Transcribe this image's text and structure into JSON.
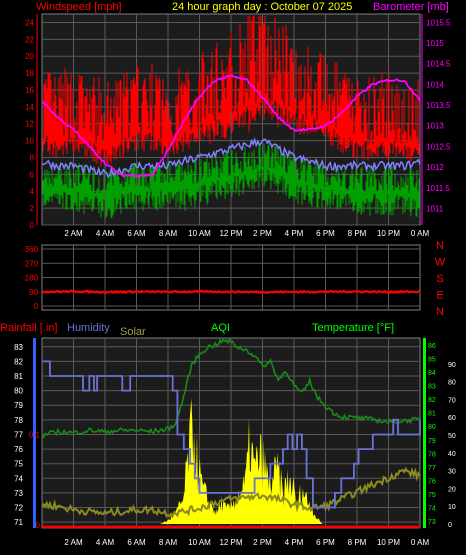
{
  "header": {
    "left_label": "Windspeed [mph]",
    "title": "24 hour graph day : October 07 2025",
    "right_label": "Barometer [mb]"
  },
  "colors": {
    "background": "#000000",
    "plot_bg": "#1c1c1c",
    "grid": "#5a5a5a",
    "wind_gust": "#ff0000",
    "wind_avg": "#00a000",
    "wind_line": "#8080ff",
    "barometer": "#ff00ff",
    "direction": "#ff0000",
    "rain": "#3060ff",
    "humidity": "#6b73d6",
    "solar": "#ffff00",
    "solar_line": "#8a8a20",
    "temperature": "#1a8a1a",
    "temp_axis": "#00ff00",
    "aqi_label": "#00ff00"
  },
  "x_ticks": [
    "2 AM",
    "4 AM",
    "6 AM",
    "8 AM",
    "10 AM",
    "12 PM",
    "2 PM",
    "4 PM",
    "6 PM",
    "8 PM",
    "10 PM",
    "0 AM"
  ],
  "chart_data": [
    {
      "type": "line",
      "name_label": "wind-and-barometer",
      "x_unit": "hour",
      "wind_axis": {
        "ylim": [
          0,
          25
        ],
        "ticks": [
          0,
          2,
          4,
          6,
          8,
          10,
          12,
          14,
          16,
          18,
          20,
          22,
          24
        ]
      },
      "baro_axis": {
        "ylim": [
          1010.6,
          1015.7
        ],
        "ticks": [
          "1011",
          "1011.5",
          "1012",
          "1012.5",
          "1013",
          "1013.5",
          "1014",
          "1014.5",
          "1015",
          "1015.5"
        ]
      },
      "series": [
        {
          "key": "gust",
          "x": [
            0,
            1,
            2,
            3,
            4,
            5,
            6,
            7,
            8,
            9,
            10,
            11,
            12,
            13,
            14,
            15,
            16,
            17,
            18,
            19,
            20,
            21,
            22,
            23,
            24
          ],
          "y": [
            13,
            12,
            13,
            12,
            11,
            12,
            13,
            13,
            12,
            13,
            14,
            15,
            16,
            17,
            19,
            17,
            16,
            15,
            14,
            13,
            12,
            12,
            12,
            12,
            11
          ]
        },
        {
          "key": "gust_spread",
          "x": [
            0,
            1,
            2,
            3,
            4,
            5,
            6,
            7,
            8,
            9,
            10,
            11,
            12,
            13,
            14,
            15,
            16,
            17,
            18,
            19,
            20,
            21,
            22,
            23,
            24
          ],
          "y": [
            4,
            4,
            4,
            4,
            4,
            4,
            4,
            4,
            4,
            4,
            4,
            5,
            5,
            6,
            6,
            5,
            5,
            4,
            4,
            4,
            4,
            4,
            4,
            4,
            4
          ]
        },
        {
          "key": "average",
          "x": [
            0,
            1,
            2,
            3,
            4,
            5,
            6,
            7,
            8,
            9,
            10,
            11,
            12,
            13,
            14,
            15,
            16,
            17,
            18,
            19,
            20,
            21,
            22,
            23,
            24
          ],
          "y": [
            5,
            5,
            5,
            4.5,
            4,
            4.5,
            5,
            5,
            5,
            5,
            5.5,
            6,
            6.5,
            7,
            7.5,
            7,
            6,
            5.5,
            5,
            5,
            4.5,
            4.5,
            4.5,
            4.5,
            4
          ]
        },
        {
          "key": "wind_line",
          "x": [
            0,
            1,
            2,
            3,
            4,
            5,
            6,
            7,
            8,
            9,
            10,
            11,
            12,
            13,
            14,
            15,
            16,
            17,
            18,
            19,
            20,
            21,
            22,
            23,
            24
          ],
          "y": [
            7.5,
            7,
            7,
            6.5,
            6,
            6.5,
            7,
            7,
            7,
            7.5,
            8,
            8.5,
            9,
            9.5,
            10,
            9,
            8,
            7.5,
            7,
            7,
            7,
            7,
            7,
            7,
            7.5
          ]
        },
        {
          "key": "barometer",
          "x": [
            0,
            1,
            2,
            3,
            4,
            5,
            6,
            7,
            8,
            9,
            10,
            11,
            12,
            13,
            14,
            15,
            16,
            17,
            18,
            19,
            20,
            21,
            22,
            23,
            24
          ],
          "y": [
            1013.6,
            1013.2,
            1012.9,
            1012.5,
            1012.1,
            1011.8,
            1011.8,
            1011.8,
            1012.4,
            1013.1,
            1013.7,
            1014.1,
            1014.2,
            1014.1,
            1013.7,
            1013.2,
            1012.9,
            1012.9,
            1013.0,
            1013.3,
            1013.7,
            1014.0,
            1014.1,
            1014.1,
            1013.6
          ]
        }
      ]
    },
    {
      "type": "line",
      "name_label": "wind-direction",
      "ylim": [
        0,
        360
      ],
      "y_ticks": [
        0,
        90,
        180,
        270,
        360
      ],
      "right_labels": [
        "N",
        "W",
        "S",
        "E",
        "N"
      ],
      "series": [
        {
          "key": "direction",
          "x": [
            0,
            2,
            4,
            6,
            8,
            10,
            12,
            14,
            16,
            18,
            20,
            22,
            24
          ],
          "y": [
            90,
            92,
            88,
            90,
            89,
            91,
            90,
            88,
            89,
            90,
            91,
            89,
            90
          ]
        }
      ]
    },
    {
      "type": "line",
      "name_label": "rain-humidity-solar-temperature",
      "legend": [
        "Rainfall [.in]",
        "Humidity",
        "Solar",
        "AQI",
        "Temperature [°F]"
      ],
      "humidity_axis": {
        "ylim": [
          70.6,
          83.6
        ],
        "ticks": [
          71,
          72,
          73,
          74,
          75,
          76,
          77,
          78,
          79,
          80,
          81,
          82,
          83
        ]
      },
      "rain_axis": {
        "ticks": [
          "0",
          "0.1"
        ]
      },
      "temp_axis": {
        "ylim": [
          72.5,
          86.5
        ],
        "ticks": [
          73,
          74,
          75,
          76,
          77,
          78,
          79,
          80,
          81,
          82,
          83,
          84,
          85,
          86
        ]
      },
      "right_axis": {
        "ylim": [
          0,
          100
        ],
        "ticks": [
          0,
          10,
          20,
          30,
          40,
          50,
          60,
          70,
          80,
          90
        ]
      },
      "series": [
        {
          "key": "humidity",
          "x": [
            0,
            0.5,
            2.5,
            2.6,
            2.9,
            3.0,
            3.3,
            3.5,
            4.9,
            5.1,
            5.4,
            5.6,
            8.0,
            8.3,
            8.6,
            9.0,
            9.4,
            9.7,
            10.0,
            10.5,
            11.5,
            13.0,
            13.5,
            14.0,
            14.5,
            15.0,
            15.3,
            15.6,
            15.9,
            16.2,
            16.5,
            16.8,
            17.2,
            17.6,
            18.0,
            18.6,
            19.0,
            19.4,
            19.8,
            20.1,
            20.5,
            21.0,
            21.5,
            22.0,
            22.3,
            22.6,
            23.0,
            23.4,
            24.0
          ],
          "y": [
            82,
            81,
            81,
            80,
            80,
            81,
            80,
            81,
            81,
            80,
            80,
            81,
            81,
            80,
            77,
            76,
            75,
            74,
            73,
            73,
            73,
            73,
            74,
            74,
            75,
            75,
            76,
            77,
            76,
            77,
            76,
            74,
            72,
            72,
            72,
            73,
            74,
            74,
            75,
            76,
            76,
            77,
            77,
            77,
            78,
            77,
            77,
            77,
            78
          ]
        },
        {
          "key": "temperature",
          "x": [
            0,
            1,
            2,
            3,
            4,
            5,
            6,
            7,
            8,
            8.5,
            9,
            9.5,
            10,
            10.5,
            11,
            11.5,
            12,
            12.5,
            13,
            13.5,
            14,
            14.5,
            15,
            15.5,
            16,
            16.5,
            17,
            17.5,
            18,
            18.5,
            19,
            20,
            21,
            22,
            23,
            24
          ],
          "y": [
            79.3,
            79.6,
            79.5,
            79.7,
            79.6,
            79.7,
            79.7,
            79.6,
            79.8,
            80.2,
            82.2,
            84.5,
            85.3,
            85.8,
            86.0,
            86.3,
            86.2,
            85.8,
            85.6,
            85.2,
            84.4,
            84.8,
            83.4,
            84.1,
            83.0,
            82.4,
            83.3,
            82.1,
            81.5,
            81.0,
            80.7,
            80.6,
            80.5,
            80.3,
            80.4,
            80.5
          ]
        },
        {
          "key": "solar",
          "x": [
            0,
            7.5,
            8.0,
            8.5,
            9.0,
            9.3,
            9.6,
            9.9,
            10.2,
            10.5,
            10.8,
            11.1,
            11.4,
            11.7,
            12.0,
            12.3,
            12.6,
            12.9,
            13.2,
            13.5,
            13.8,
            14.1,
            14.4,
            14.7,
            15.0,
            15.3,
            15.6,
            15.9,
            16.2,
            16.5,
            16.8,
            17.1,
            17.4,
            17.8,
            24
          ],
          "y": [
            0,
            0,
            2,
            6,
            14,
            40,
            55,
            32,
            20,
            14,
            10,
            6,
            12,
            8,
            10,
            14,
            18,
            22,
            46,
            30,
            38,
            34,
            22,
            26,
            30,
            16,
            24,
            22,
            10,
            20,
            14,
            10,
            4,
            0,
            0
          ]
        },
        {
          "key": "solar_average",
          "x": [
            0,
            1,
            2,
            3,
            4,
            5,
            6,
            7,
            8,
            9,
            10,
            11,
            12,
            13,
            14,
            15,
            16,
            17,
            18,
            19,
            20,
            21,
            22,
            23,
            24
          ],
          "y": [
            11,
            10,
            8,
            7,
            6,
            7,
            8,
            8,
            6,
            7,
            9,
            12,
            14,
            15,
            16,
            14,
            11,
            9,
            10,
            14,
            18,
            22,
            26,
            30,
            27
          ]
        },
        {
          "key": "rain",
          "x": [
            0,
            24
          ],
          "y": [
            0,
            0
          ]
        }
      ]
    }
  ]
}
